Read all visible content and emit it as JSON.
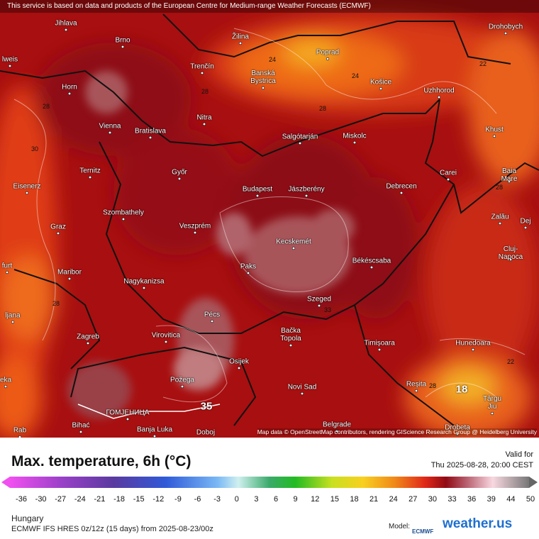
{
  "banner": "This service is based on data and products of the European Centre for Medium-range Weather Forecasts (ECMWF)",
  "attribution": "Map data © OpenStreetMap contributors, rendering GIScience Research Group @ Heidelberg University",
  "cities": [
    "Jihlava",
    "Brno",
    "Žilina",
    "Poprad",
    "Drohobych",
    "lweis",
    "Trenčín",
    "Banská\nBystrica",
    "Horn",
    "Košice",
    "Uzhhorod",
    "Nitra",
    "Vienna",
    "Bratislava",
    "Salgótarján",
    "Miskolc",
    "Khust",
    "Ternitz",
    "Győr",
    "Carei",
    "Baia Mare",
    "Eisenerz",
    "Budapest",
    "Jászberény",
    "Debrecen",
    "Szombathely",
    "Zalău",
    "Graz",
    "Veszprém",
    "Kecskemét",
    "Dej",
    "Cluj-Napoca",
    "furt",
    "Maribor",
    "Paks",
    "Békéscsaba",
    "Nagykanizsa",
    "Szeged",
    "ljana",
    "Pécs",
    "Virovitica",
    "Bačka\nTopola",
    "Zagreb",
    "Timișoara",
    "Hunedoara",
    "Osijek",
    "Požega",
    "Novi Sad",
    "Reșita",
    "eka",
    "Târgu\nJiu",
    "ГОМЈЕНИЦА",
    "Bihać",
    "Banja Luka",
    "Doboj",
    "Belgrade",
    "Drobeta",
    "Rab"
  ],
  "contour_labels": [
    24,
    24,
    28,
    22,
    28,
    28,
    30,
    28,
    28,
    33,
    22,
    18,
    35,
    28
  ],
  "legend": {
    "title": "Max. temperature, 6h (°C)",
    "valid_label": "Valid for",
    "valid_time": "Thu 2025-08-28, 20:00 CEST",
    "ticks": [
      -36,
      -30,
      -27,
      -24,
      -21,
      -18,
      -15,
      -12,
      -9,
      -6,
      -3,
      0,
      3,
      6,
      9,
      12,
      15,
      18,
      21,
      24,
      27,
      30,
      33,
      36,
      39,
      44,
      50
    ]
  },
  "region": "Hungary",
  "model": "ECMWF IFS HRES 0z/12z (15 days) from  2025-08-23/00z",
  "model_label": "Model:",
  "model_logo": "ECMWF",
  "brand": "weather.us"
}
